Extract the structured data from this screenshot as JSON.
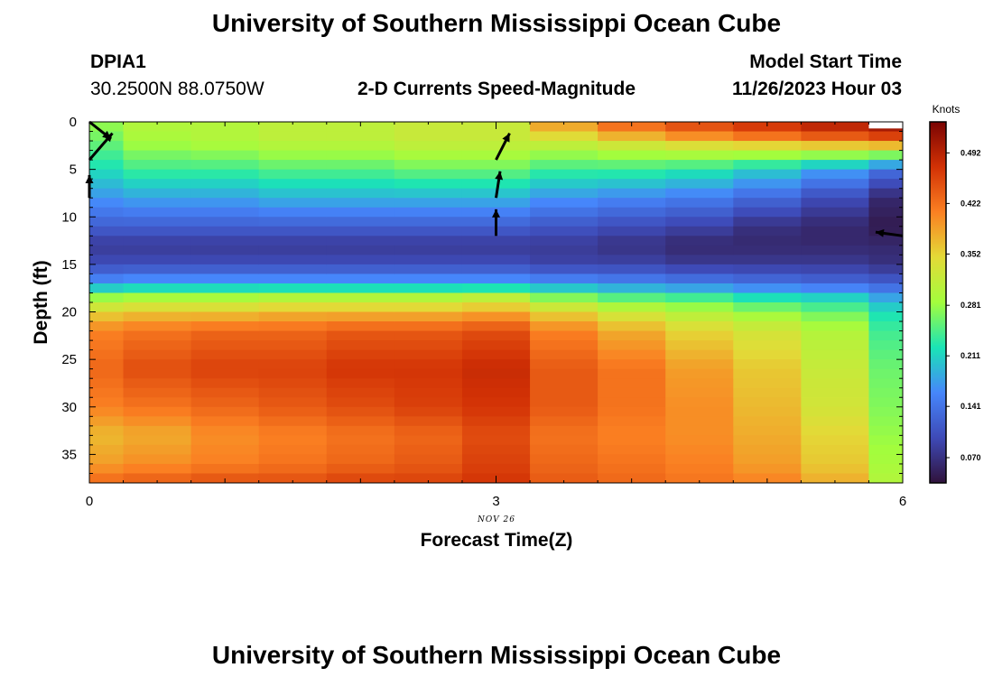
{
  "header": {
    "title": "University of Southern Mississippi Ocean Cube",
    "station_id": "DPIA1",
    "coordinates": "30.2500N  88.0750W",
    "plot_title": "2-D Currents Speed-Magnitude",
    "model_label": "Model Start Time",
    "model_time": "11/26/2023 Hour 03"
  },
  "footer": {
    "title": "University of Southern Mississippi Ocean Cube"
  },
  "chart_data": {
    "type": "heatmap",
    "title": "2-D Currents Speed-Magnitude",
    "xlabel": "Forecast Time(Z)",
    "ylabel": "Depth (ft)",
    "date_label": "NOV 26",
    "x_ticks": [
      "0",
      "3",
      "6"
    ],
    "x_tick_values": [
      0,
      3,
      6
    ],
    "xlim": [
      0,
      6
    ],
    "y_ticks": [
      "0",
      "5",
      "10",
      "15",
      "20",
      "25",
      "30",
      "35"
    ],
    "y_tick_values": [
      0,
      5,
      10,
      15,
      20,
      25,
      30,
      35
    ],
    "ylim": [
      0,
      38
    ],
    "colorbar": {
      "label": "Knots",
      "ticks": [
        "0.492",
        "0.422",
        "0.352",
        "0.281",
        "0.211",
        "0.141",
        "0.070"
      ],
      "tick_values": [
        0.492,
        0.422,
        0.352,
        0.281,
        0.211,
        0.141,
        0.07
      ],
      "range": [
        0.035,
        0.535
      ],
      "colors": [
        "#30123b",
        "#3e4ab7",
        "#4686fb",
        "#1ae4b6",
        "#a3fd3d",
        "#e3da37",
        "#fb8022",
        "#d23105",
        "#7a0403"
      ]
    },
    "columns": [
      {
        "x0": 0,
        "x1": 0.25,
        "profile": [
          [
            0,
            0.28
          ],
          [
            2,
            0.26
          ],
          [
            5,
            0.22
          ],
          [
            8,
            0.17
          ],
          [
            11,
            0.12
          ],
          [
            13,
            0.08
          ],
          [
            15,
            0.1
          ],
          [
            17,
            0.17
          ],
          [
            18.5,
            0.28
          ],
          [
            20,
            0.35
          ],
          [
            22,
            0.41
          ],
          [
            26,
            0.43
          ],
          [
            30,
            0.41
          ],
          [
            33,
            0.37
          ],
          [
            36,
            0.39
          ],
          [
            38,
            0.43
          ]
        ]
      },
      {
        "x0": 0.25,
        "x1": 0.75,
        "profile": [
          [
            0,
            0.3
          ],
          [
            2,
            0.29
          ],
          [
            5,
            0.24
          ],
          [
            8,
            0.18
          ],
          [
            11,
            0.12
          ],
          [
            13,
            0.08
          ],
          [
            15,
            0.1
          ],
          [
            17,
            0.18
          ],
          [
            18.5,
            0.29
          ],
          [
            20,
            0.36
          ],
          [
            22,
            0.42
          ],
          [
            26,
            0.45
          ],
          [
            30,
            0.42
          ],
          [
            33,
            0.38
          ],
          [
            36,
            0.4
          ],
          [
            38,
            0.44
          ]
        ]
      },
      {
        "x0": 0.75,
        "x1": 1.25,
        "profile": [
          [
            0,
            0.3
          ],
          [
            2,
            0.3
          ],
          [
            5,
            0.24
          ],
          [
            8,
            0.18
          ],
          [
            11,
            0.12
          ],
          [
            13,
            0.08
          ],
          [
            15,
            0.1
          ],
          [
            17,
            0.18
          ],
          [
            18.5,
            0.29
          ],
          [
            20,
            0.36
          ],
          [
            22,
            0.43
          ],
          [
            26,
            0.46
          ],
          [
            30,
            0.43
          ],
          [
            33,
            0.4
          ],
          [
            36,
            0.41
          ],
          [
            38,
            0.45
          ]
        ]
      },
      {
        "x0": 1.25,
        "x1": 1.75,
        "profile": [
          [
            0,
            0.31
          ],
          [
            2,
            0.31
          ],
          [
            5,
            0.25
          ],
          [
            8,
            0.19
          ],
          [
            11,
            0.12
          ],
          [
            13,
            0.08
          ],
          [
            15,
            0.1
          ],
          [
            17,
            0.18
          ],
          [
            18.5,
            0.3
          ],
          [
            20,
            0.37
          ],
          [
            22,
            0.43
          ],
          [
            26,
            0.46
          ],
          [
            30,
            0.44
          ],
          [
            33,
            0.41
          ],
          [
            36,
            0.42
          ],
          [
            38,
            0.45
          ]
        ]
      },
      {
        "x0": 1.75,
        "x1": 2.25,
        "profile": [
          [
            0,
            0.31
          ],
          [
            2,
            0.31
          ],
          [
            5,
            0.25
          ],
          [
            8,
            0.19
          ],
          [
            11,
            0.12
          ],
          [
            13,
            0.08
          ],
          [
            15,
            0.1
          ],
          [
            17,
            0.18
          ],
          [
            18.5,
            0.3
          ],
          [
            20,
            0.37
          ],
          [
            22,
            0.44
          ],
          [
            26,
            0.47
          ],
          [
            30,
            0.45
          ],
          [
            33,
            0.42
          ],
          [
            36,
            0.43
          ],
          [
            38,
            0.46
          ]
        ]
      },
      {
        "x0": 2.25,
        "x1": 2.75,
        "profile": [
          [
            0,
            0.32
          ],
          [
            2,
            0.32
          ],
          [
            5,
            0.26
          ],
          [
            8,
            0.19
          ],
          [
            11,
            0.12
          ],
          [
            13,
            0.08
          ],
          [
            15,
            0.1
          ],
          [
            17,
            0.18
          ],
          [
            18.5,
            0.3
          ],
          [
            20,
            0.37
          ],
          [
            22,
            0.44
          ],
          [
            26,
            0.47
          ],
          [
            30,
            0.46
          ],
          [
            33,
            0.43
          ],
          [
            36,
            0.44
          ],
          [
            38,
            0.46
          ]
        ]
      },
      {
        "x0": 2.75,
        "x1": 3.25,
        "profile": [
          [
            0,
            0.32
          ],
          [
            2,
            0.32
          ],
          [
            5,
            0.26
          ],
          [
            8,
            0.19
          ],
          [
            11,
            0.12
          ],
          [
            13,
            0.08
          ],
          [
            15,
            0.1
          ],
          [
            17,
            0.18
          ],
          [
            18.5,
            0.31
          ],
          [
            20,
            0.38
          ],
          [
            22,
            0.45
          ],
          [
            26,
            0.48
          ],
          [
            30,
            0.47
          ],
          [
            33,
            0.45
          ],
          [
            36,
            0.46
          ],
          [
            38,
            0.47
          ]
        ]
      },
      {
        "x0": 3.25,
        "x1": 3.75,
        "profile": [
          [
            0,
            0.4
          ],
          [
            1,
            0.36
          ],
          [
            2,
            0.33
          ],
          [
            3,
            0.29
          ],
          [
            5,
            0.24
          ],
          [
            8,
            0.17
          ],
          [
            11,
            0.11
          ],
          [
            13,
            0.08
          ],
          [
            15,
            0.09
          ],
          [
            17,
            0.17
          ],
          [
            18.5,
            0.27
          ],
          [
            20,
            0.35
          ],
          [
            22,
            0.41
          ],
          [
            26,
            0.44
          ],
          [
            30,
            0.44
          ],
          [
            33,
            0.42
          ],
          [
            36,
            0.43
          ],
          [
            38,
            0.44
          ]
        ]
      },
      {
        "x0": 3.75,
        "x1": 4.25,
        "profile": [
          [
            0,
            0.44
          ],
          [
            1,
            0.4
          ],
          [
            2,
            0.35
          ],
          [
            3,
            0.3
          ],
          [
            5,
            0.24
          ],
          [
            8,
            0.16
          ],
          [
            11,
            0.1
          ],
          [
            13,
            0.07
          ],
          [
            15,
            0.09
          ],
          [
            17,
            0.16
          ],
          [
            18.5,
            0.25
          ],
          [
            20,
            0.32
          ],
          [
            22,
            0.38
          ],
          [
            26,
            0.42
          ],
          [
            30,
            0.42
          ],
          [
            33,
            0.41
          ],
          [
            36,
            0.42
          ],
          [
            38,
            0.43
          ]
        ]
      },
      {
        "x0": 4.25,
        "x1": 4.75,
        "profile": [
          [
            0,
            0.46
          ],
          [
            1,
            0.43
          ],
          [
            2,
            0.37
          ],
          [
            3,
            0.31
          ],
          [
            5,
            0.23
          ],
          [
            8,
            0.15
          ],
          [
            11,
            0.09
          ],
          [
            13,
            0.06
          ],
          [
            15,
            0.08
          ],
          [
            17,
            0.15
          ],
          [
            18.5,
            0.24
          ],
          [
            20,
            0.3
          ],
          [
            22,
            0.35
          ],
          [
            26,
            0.39
          ],
          [
            30,
            0.4
          ],
          [
            33,
            0.4
          ],
          [
            36,
            0.41
          ],
          [
            38,
            0.42
          ]
        ]
      },
      {
        "x0": 4.75,
        "x1": 5.25,
        "profile": [
          [
            0,
            0.48
          ],
          [
            1,
            0.45
          ],
          [
            2,
            0.39
          ],
          [
            3,
            0.31
          ],
          [
            5,
            0.21
          ],
          [
            8,
            0.13
          ],
          [
            11,
            0.07
          ],
          [
            13,
            0.06
          ],
          [
            15,
            0.08
          ],
          [
            17,
            0.14
          ],
          [
            18.5,
            0.22
          ],
          [
            20,
            0.28
          ],
          [
            22,
            0.33
          ],
          [
            26,
            0.36
          ],
          [
            30,
            0.37
          ],
          [
            33,
            0.38
          ],
          [
            36,
            0.39
          ],
          [
            38,
            0.41
          ]
        ]
      },
      {
        "x0": 5.25,
        "x1": 5.75,
        "profile": [
          [
            0,
            0.5
          ],
          [
            1,
            0.47
          ],
          [
            2,
            0.41
          ],
          [
            3,
            0.31
          ],
          [
            5,
            0.18
          ],
          [
            8,
            0.1
          ],
          [
            11,
            0.06
          ],
          [
            13,
            0.06
          ],
          [
            15,
            0.08
          ],
          [
            17,
            0.13
          ],
          [
            18.5,
            0.21
          ],
          [
            20,
            0.26
          ],
          [
            22,
            0.3
          ],
          [
            26,
            0.32
          ],
          [
            30,
            0.33
          ],
          [
            33,
            0.35
          ],
          [
            36,
            0.36
          ],
          [
            38,
            0.38
          ]
        ]
      },
      {
        "x0": 5.75,
        "x1": 6.0,
        "profile": [
          [
            0,
            0.52
          ],
          [
            1,
            0.49
          ],
          [
            2,
            0.43
          ],
          [
            3,
            0.31
          ],
          [
            5,
            0.14
          ],
          [
            8,
            0.06
          ],
          [
            11,
            0.045
          ],
          [
            13,
            0.06
          ],
          [
            15,
            0.07
          ],
          [
            17,
            0.12
          ],
          [
            18.5,
            0.18
          ],
          [
            20,
            0.22
          ],
          [
            22,
            0.24
          ],
          [
            26,
            0.26
          ],
          [
            30,
            0.27
          ],
          [
            33,
            0.28
          ],
          [
            36,
            0.29
          ],
          [
            38,
            0.3
          ]
        ]
      }
    ],
    "missing_cells": [
      {
        "x0": 5.75,
        "x1": 6.0,
        "y0": 0,
        "y1": 0.6
      }
    ],
    "vectors": [
      {
        "t": 0,
        "depth": 0,
        "dx": 0.16,
        "dy": 1.8
      },
      {
        "t": 0,
        "depth": 4,
        "dx": 0.17,
        "dy": -2.8
      },
      {
        "t": 0,
        "depth": 8,
        "dx": 0,
        "dy": -2.4
      },
      {
        "t": 3.0,
        "depth": 4,
        "dx": 0.1,
        "dy": -2.8
      },
      {
        "t": 3.0,
        "depth": 8,
        "dx": 0.03,
        "dy": -2.8
      },
      {
        "t": 3.0,
        "depth": 12,
        "dx": 0,
        "dy": -2.8
      },
      {
        "t": 6.0,
        "depth": 12,
        "dx": -0.2,
        "dy": -0.4
      }
    ]
  }
}
